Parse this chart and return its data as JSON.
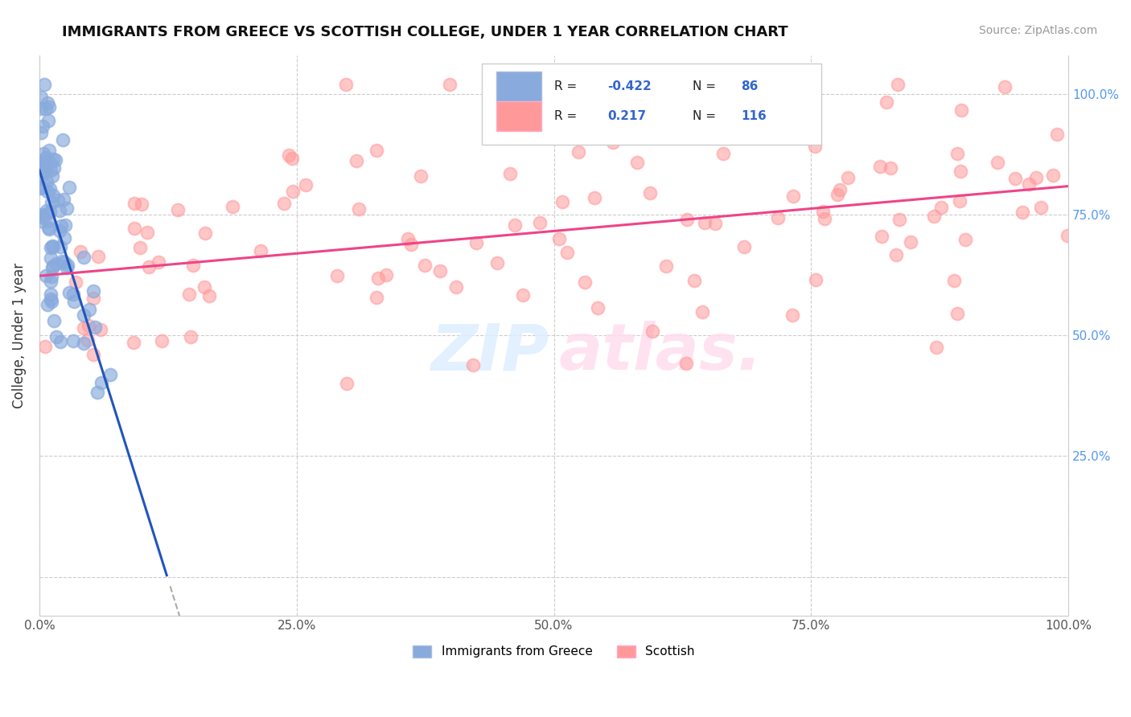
{
  "title": "IMMIGRANTS FROM GREECE VS SCOTTISH COLLEGE, UNDER 1 YEAR CORRELATION CHART",
  "source_text": "Source: ZipAtlas.com",
  "ylabel": "College, Under 1 year",
  "r_blue": -0.422,
  "n_blue": 86,
  "r_pink": 0.217,
  "n_pink": 116,
  "legend_label_blue": "Immigrants from Greece",
  "legend_label_pink": "Scottish",
  "color_blue": "#88AADD",
  "color_pink": "#FF9999",
  "line_color_blue": "#2255BB",
  "line_color_pink": "#EE4488",
  "watermark_zip_color": "#DDEEFF",
  "watermark_atlas_color": "#FFDDEE",
  "right_axis_color": "#5599EE",
  "grid_color": "#CCCCCC",
  "title_color": "#111111",
  "source_color": "#999999",
  "ylabel_color": "#333333"
}
